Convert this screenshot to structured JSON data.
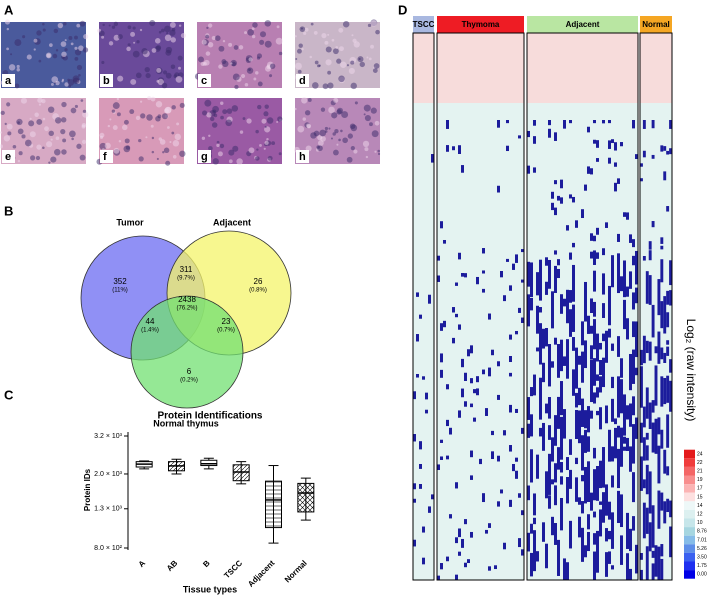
{
  "panel_letters": [
    "A",
    "B",
    "C",
    "D"
  ],
  "histology_labels": [
    "a",
    "b",
    "c",
    "d",
    "e",
    "f",
    "g",
    "h"
  ],
  "venn": {
    "sets": [
      {
        "name": "Tumor",
        "color": "#6b6bf2"
      },
      {
        "name": "Adjacent",
        "color": "#f4f46a"
      },
      {
        "name": "Normal thymus",
        "color": "#72e072"
      }
    ],
    "regions": [
      {
        "count": "352",
        "percent": "(11%)"
      },
      {
        "count": "311",
        "percent": "(9.7%)"
      },
      {
        "count": "26",
        "percent": "(0.8%)"
      },
      {
        "count": "2438",
        "percent": "(76.2%)"
      },
      {
        "count": "44",
        "percent": "(1.4%)"
      },
      {
        "count": "23",
        "percent": "(0.7%)"
      },
      {
        "count": "6",
        "percent": "(0.2%)"
      }
    ]
  },
  "chart_data": [
    {
      "type": "box",
      "title": "Protein Identifications",
      "x_label": "Tissue types",
      "y_label": "Protein IDs",
      "log_y": true,
      "categories": [
        "A",
        "AB",
        "B",
        "TSCC",
        "Adjacent",
        "Normal"
      ],
      "boxes": [
        {
          "min": 2130,
          "q1": 2180,
          "median": 2260,
          "q3": 2330,
          "max": 2350
        },
        {
          "min": 2000,
          "q1": 2080,
          "median": 2210,
          "q3": 2330,
          "max": 2400
        },
        {
          "min": 2130,
          "q1": 2220,
          "median": 2270,
          "q3": 2370,
          "max": 2430
        },
        {
          "min": 1770,
          "q1": 1840,
          "median": 2050,
          "q3": 2240,
          "max": 2330
        },
        {
          "min": 850,
          "q1": 1030,
          "median": 1450,
          "q3": 1830,
          "max": 2220
        },
        {
          "min": 1130,
          "q1": 1250,
          "median": 1580,
          "q3": 1780,
          "max": 1900
        }
      ],
      "ylim": [
        800,
        3200
      ],
      "yticks": [
        {
          "value": 800,
          "label": "8.0 × 10²"
        },
        {
          "value": 1300,
          "label": "1.3 × 10³"
        },
        {
          "value": 2000,
          "label": "2.0 × 10³"
        },
        {
          "value": 3200,
          "label": "3.2 × 10³"
        }
      ]
    },
    {
      "type": "heatmap",
      "axis_label": "Log₂ (raw intensity)",
      "groups": [
        {
          "name": "TSCC",
          "color": "#a9b8e0"
        },
        {
          "name": "Thymoma",
          "color": "#ee1c24"
        },
        {
          "name": "Adjacent",
          "color": "#b9e6a2"
        },
        {
          "name": "Normal",
          "color": "#f5a623"
        }
      ],
      "colorbar_ticks": [
        24,
        22,
        21,
        19,
        17,
        15,
        14,
        12,
        10,
        8.76,
        7.01,
        5.26,
        {
          "value": 3.5,
          "label": "3.50"
        },
        1.75,
        {
          "value": 0,
          "label": "0.00"
        }
      ],
      "colorbar_colors": [
        "#e41a1c",
        "#f03c3c",
        "#f46666",
        "#f88e8e",
        "#fbb4b4",
        "#fde0e0",
        "#eef8f8",
        "#dcf0f0",
        "#c6e6ea",
        "#a6d6e0",
        "#86bce8",
        "#5e8ee8",
        "#3a60f0",
        "#1e30f0",
        "#0000e6"
      ]
    }
  ]
}
